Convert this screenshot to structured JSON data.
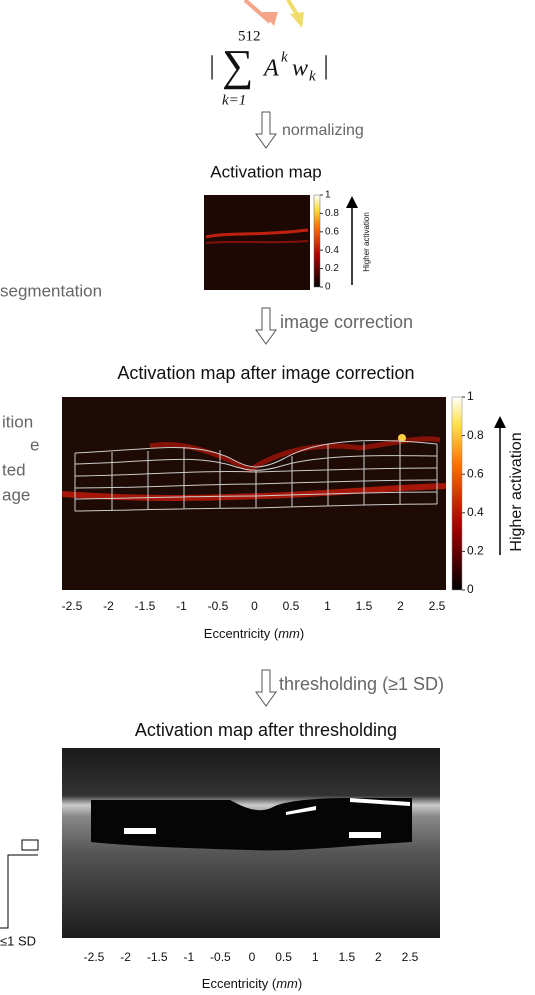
{
  "formula": {
    "open": "|",
    "sigma": "∑",
    "sum_upper": "512",
    "sum_lower": "k=1",
    "term": "A",
    "term_sup": "k",
    "weight": "w",
    "weight_sub": "k",
    "close": "|"
  },
  "steps": {
    "normalizing": "normalizing",
    "segmentation": "segmentation",
    "image_correction": "image correction",
    "thresholding": "thresholding (≥1 SD)"
  },
  "panel_1": {
    "title": "Activation map",
    "colorbar_ticks": [
      0,
      0.2,
      0.4,
      0.6,
      0.8,
      1
    ],
    "colorbar_label": "Higher activation"
  },
  "panel_2": {
    "title": "Activation map after image correction",
    "colorbar_ticks": [
      0,
      0.2,
      0.4,
      0.6,
      0.8,
      1
    ],
    "colorbar_label": "Higher activation",
    "x_ticks": [
      -2.5,
      -2,
      -1.5,
      -1,
      -0.5,
      0,
      0.5,
      1,
      1.5,
      2,
      2.5
    ],
    "x_label": {
      "before": "Eccentricity (",
      "unit": "mm",
      "after": ")"
    }
  },
  "panel_3": {
    "title": "Activation map after thresholding",
    "x_ticks": [
      -2.5,
      -2,
      -1.5,
      -1,
      -0.5,
      0,
      0.5,
      1,
      1.5,
      2,
      2.5
    ],
    "x_label": {
      "before": "Eccentricity (",
      "unit": "mm",
      "after": ")"
    }
  },
  "cropped_left": {
    "lines": [
      "ition",
      "e",
      "ted",
      "age"
    ],
    "legend": "≤1 SD"
  }
}
